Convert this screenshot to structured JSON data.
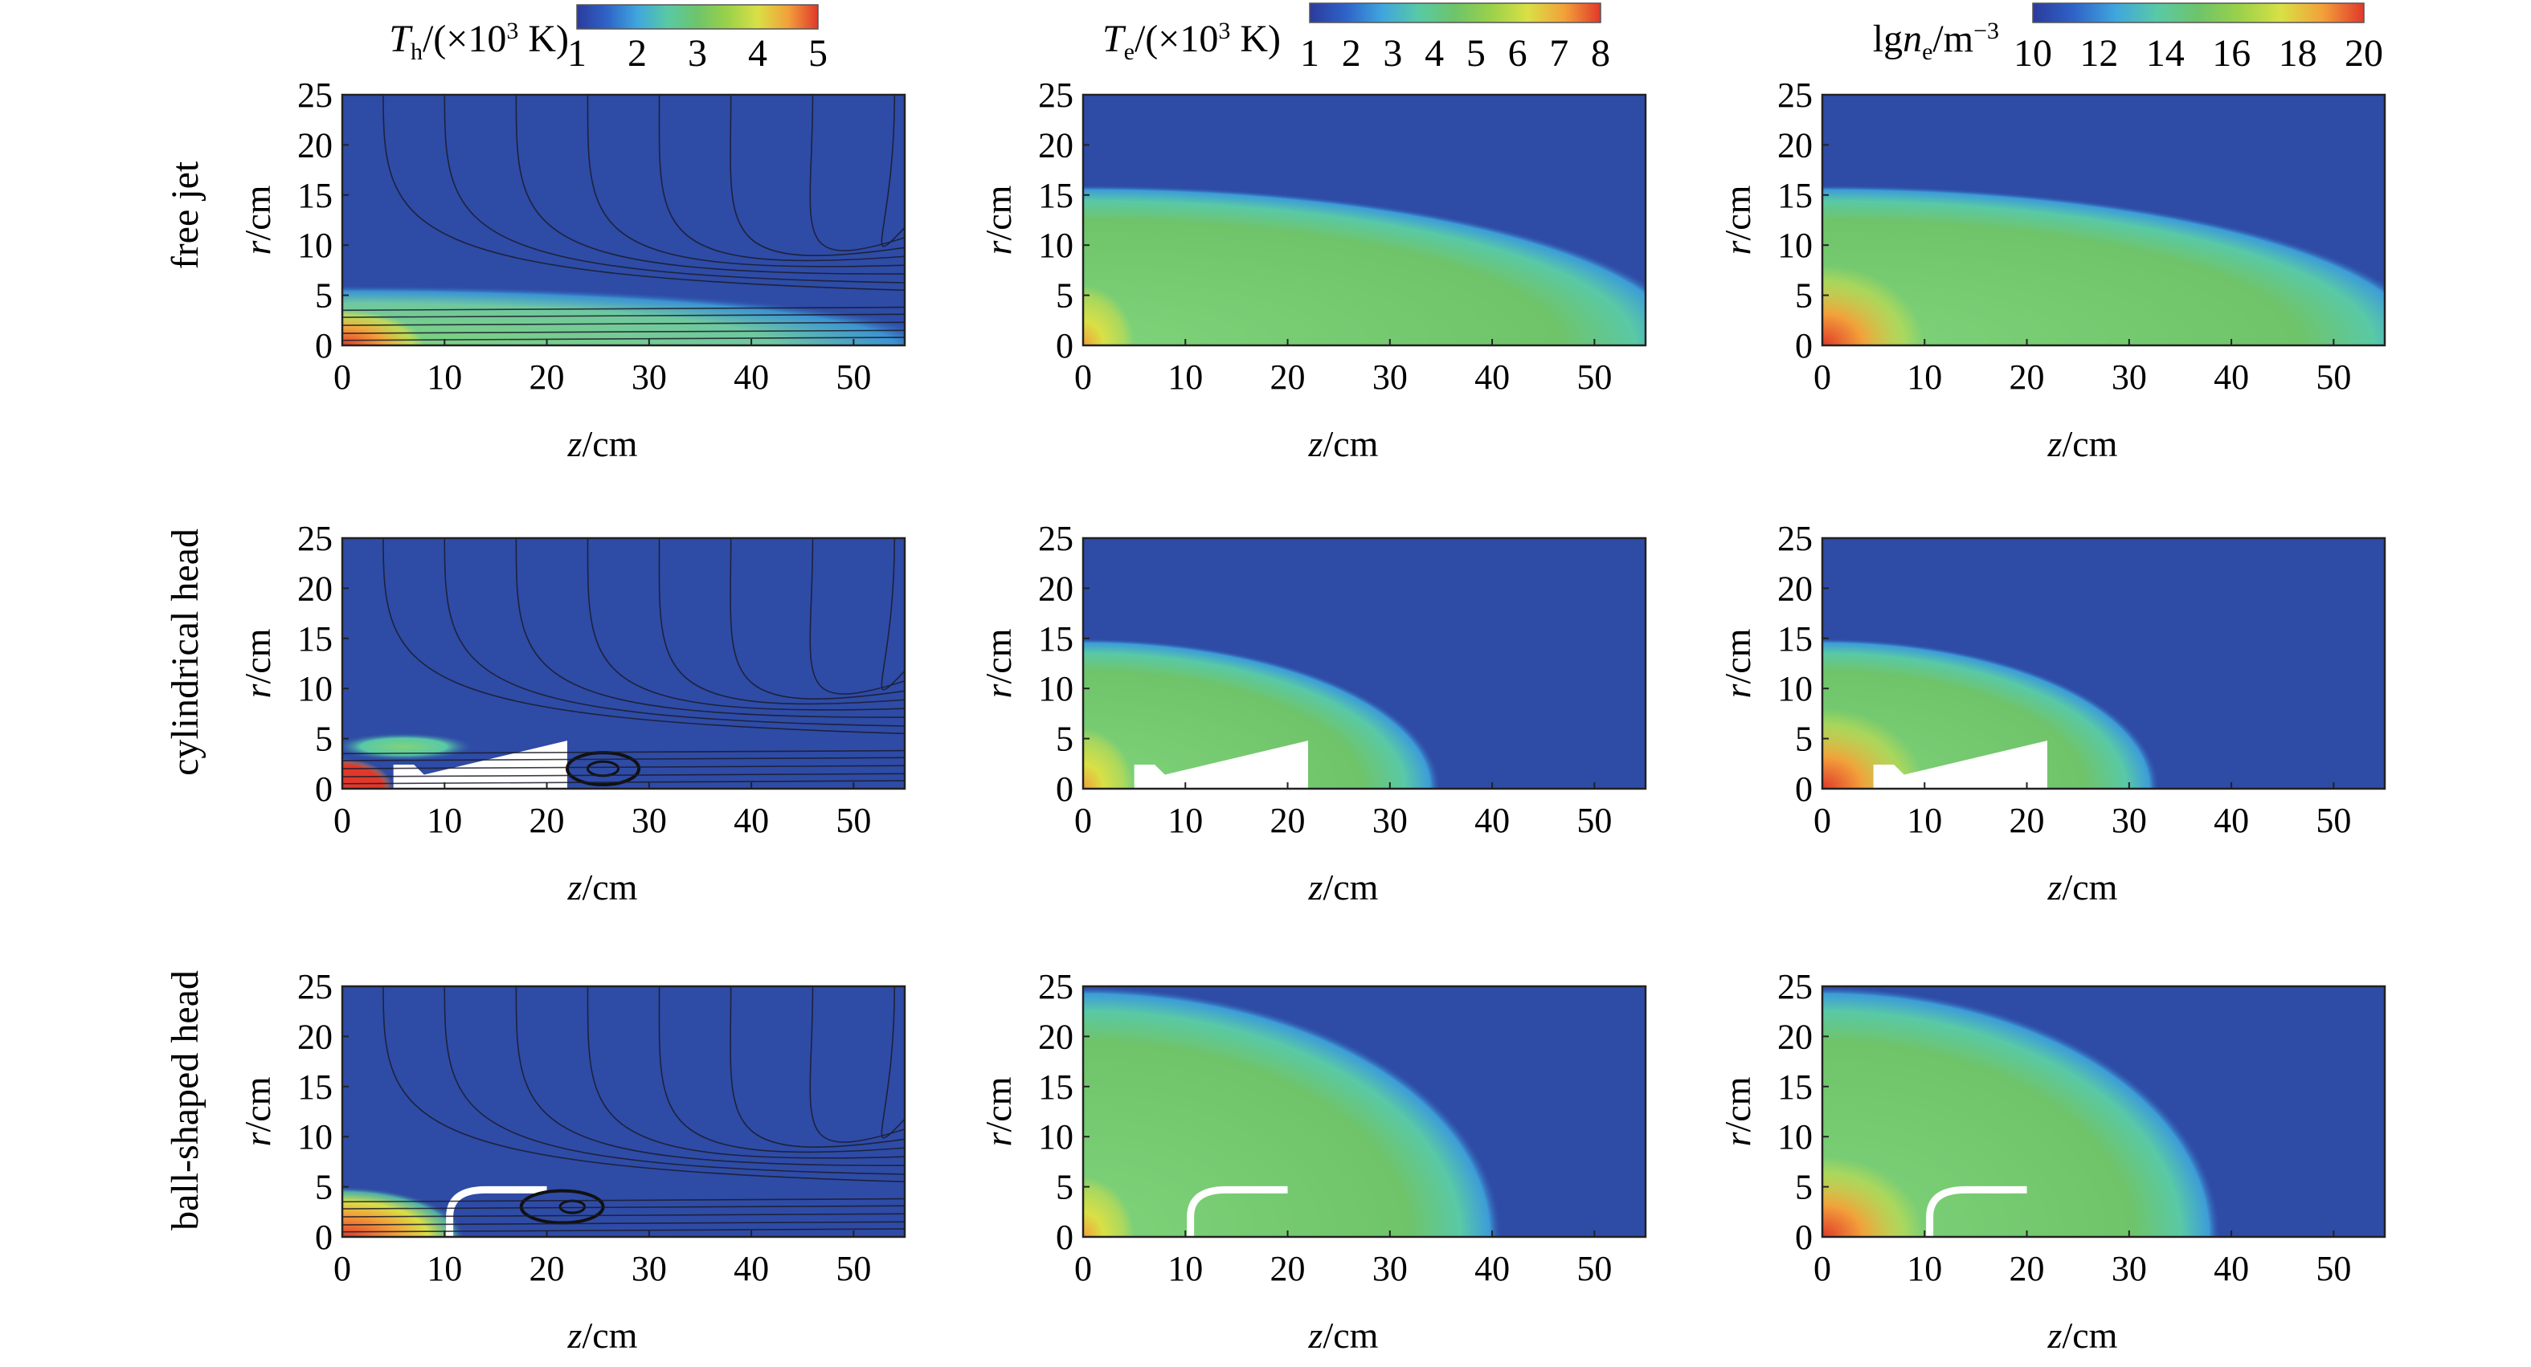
{
  "figure": {
    "row_labels": [
      "free jet",
      "cylindrical head",
      "ball-shaped head"
    ],
    "colorbars": [
      {
        "label_html": [
          "T",
          "h",
          "/(×10",
          "3",
          " K)"
        ],
        "ticks": [
          "1",
          "2",
          "3",
          "4",
          "5"
        ],
        "range": [
          1,
          5
        ]
      },
      {
        "label_html": [
          "T",
          "e",
          "/(×10",
          "3",
          " K)"
        ],
        "ticks": [
          "1",
          "2",
          "3",
          "4",
          "5",
          "6",
          "7",
          "8"
        ],
        "range": [
          1,
          8
        ]
      },
      {
        "label_html": [
          "lg",
          "n",
          "e",
          "/m",
          "−3"
        ],
        "ticks": [
          "10",
          "12",
          "14",
          "16",
          "18",
          "20"
        ],
        "range": [
          10,
          20
        ]
      }
    ],
    "colormap": [
      "#2b3b9c",
      "#2f63c8",
      "#3fa6dd",
      "#59c9a6",
      "#6ec46a",
      "#9bd14a",
      "#d9e045",
      "#f2a13a",
      "#e0392b"
    ]
  },
  "chart_data": [
    {
      "type": "heatmap",
      "panel": "free jet — T_h",
      "xlabel": "z/cm",
      "ylabel": "r/cm",
      "xlim": [
        0,
        55
      ],
      "ylim": [
        0,
        25
      ],
      "xticks": [
        "0",
        "10",
        "20",
        "30",
        "40",
        "50"
      ],
      "yticks": [
        "0",
        "5",
        "10",
        "15",
        "20",
        "25"
      ],
      "streamlines": true
    },
    {
      "type": "heatmap",
      "panel": "free jet — T_e",
      "xlabel": "z/cm",
      "ylabel": "r/cm",
      "xlim": [
        0,
        55
      ],
      "ylim": [
        0,
        25
      ],
      "xticks": [
        "0",
        "10",
        "20",
        "30",
        "40",
        "50"
      ],
      "yticks": [
        "0",
        "5",
        "10",
        "15",
        "20",
        "25"
      ]
    },
    {
      "type": "heatmap",
      "panel": "free jet — lg n_e",
      "xlabel": "z/cm",
      "ylabel": "r/cm",
      "xlim": [
        0,
        55
      ],
      "ylim": [
        0,
        25
      ],
      "xticks": [
        "0",
        "10",
        "20",
        "30",
        "40",
        "50"
      ],
      "yticks": [
        "0",
        "5",
        "10",
        "15",
        "20",
        "25"
      ]
    },
    {
      "type": "heatmap",
      "panel": "cylindrical head — T_h",
      "xlabel": "z/cm",
      "ylabel": "r/cm",
      "xlim": [
        0,
        55
      ],
      "ylim": [
        0,
        25
      ],
      "xticks": [
        "0",
        "10",
        "20",
        "30",
        "40",
        "50"
      ],
      "yticks": [
        "0",
        "5",
        "10",
        "15",
        "20",
        "25"
      ],
      "streamlines": true
    },
    {
      "type": "heatmap",
      "panel": "cylindrical head — T_e",
      "xlabel": "z/cm",
      "ylabel": "r/cm",
      "xlim": [
        0,
        55
      ],
      "ylim": [
        0,
        25
      ],
      "xticks": [
        "0",
        "10",
        "20",
        "30",
        "40",
        "50"
      ],
      "yticks": [
        "0",
        "5",
        "10",
        "15",
        "20",
        "25"
      ]
    },
    {
      "type": "heatmap",
      "panel": "cylindrical head — lg n_e",
      "xlabel": "z/cm",
      "ylabel": "r/cm",
      "xlim": [
        0,
        55
      ],
      "ylim": [
        0,
        25
      ],
      "xticks": [
        "0",
        "10",
        "20",
        "30",
        "40",
        "50"
      ],
      "yticks": [
        "0",
        "5",
        "10",
        "15",
        "20",
        "25"
      ]
    },
    {
      "type": "heatmap",
      "panel": "ball-shaped head — T_h",
      "xlabel": "z/cm",
      "ylabel": "r/cm",
      "xlim": [
        0,
        55
      ],
      "ylim": [
        0,
        25
      ],
      "xticks": [
        "0",
        "10",
        "20",
        "30",
        "40",
        "50"
      ],
      "yticks": [
        "0",
        "5",
        "10",
        "15",
        "20",
        "25"
      ],
      "streamlines": true
    },
    {
      "type": "heatmap",
      "panel": "ball-shaped head — T_e",
      "xlabel": "z/cm",
      "ylabel": "r/cm",
      "xlim": [
        0,
        55
      ],
      "ylim": [
        0,
        25
      ],
      "xticks": [
        "0",
        "10",
        "20",
        "30",
        "40",
        "50"
      ],
      "yticks": [
        "0",
        "5",
        "10",
        "15",
        "20",
        "25"
      ]
    },
    {
      "type": "heatmap",
      "panel": "ball-shaped head — lg n_e",
      "xlabel": "z/cm",
      "ylabel": "r/cm",
      "xlim": [
        0,
        55
      ],
      "ylim": [
        0,
        25
      ],
      "xticks": [
        "0",
        "10",
        "20",
        "30",
        "40",
        "50"
      ],
      "yticks": [
        "0",
        "5",
        "10",
        "15",
        "20",
        "25"
      ]
    }
  ]
}
